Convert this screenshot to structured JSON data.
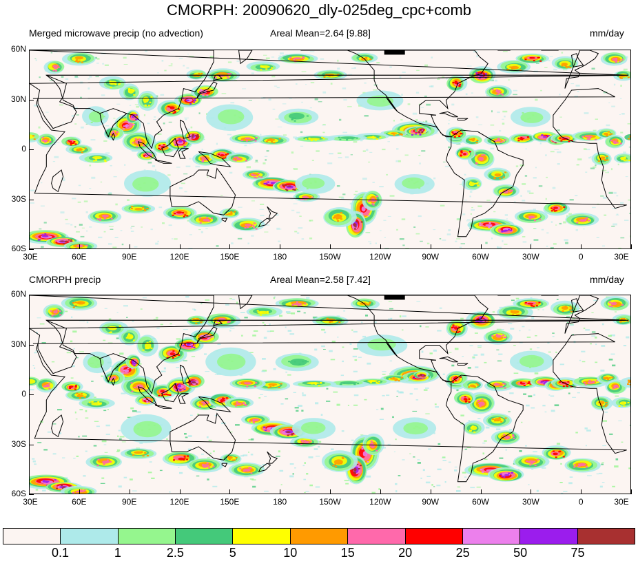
{
  "title": "CMORPH: 20090620_dly-025deg_cpc+comb",
  "panels": [
    {
      "left_title": "Merged microwave precip (no advection)",
      "center_title": "Areal Mean=2.64 [9.88]",
      "units": "mm/day"
    },
    {
      "left_title": "CMORPH precip",
      "center_title": "Areal Mean=2.58 [7.42]",
      "units": "mm/day"
    }
  ],
  "lat_ticks": [
    "60N",
    "30N",
    "0",
    "30S",
    "60S"
  ],
  "lon_ticks": [
    "30E",
    "60E",
    "90E",
    "120E",
    "150E",
    "180",
    "150W",
    "120W",
    "90W",
    "60W",
    "30W",
    "0",
    "30E"
  ],
  "colorbar": {
    "colors": [
      "#fcf5f2",
      "#aeeaea",
      "#95f68e",
      "#44c97a",
      "#ffff00",
      "#ff9a00",
      "#ff69ab",
      "#ff0000",
      "#ec80ec",
      "#9b1ded",
      "#a83030"
    ],
    "labels": [
      "0.1",
      "1",
      "2.5",
      "5",
      "10",
      "15",
      "20",
      "25",
      "50",
      "75"
    ]
  },
  "map_background": "#fcf5f2",
  "coastline_color": "#000000"
}
